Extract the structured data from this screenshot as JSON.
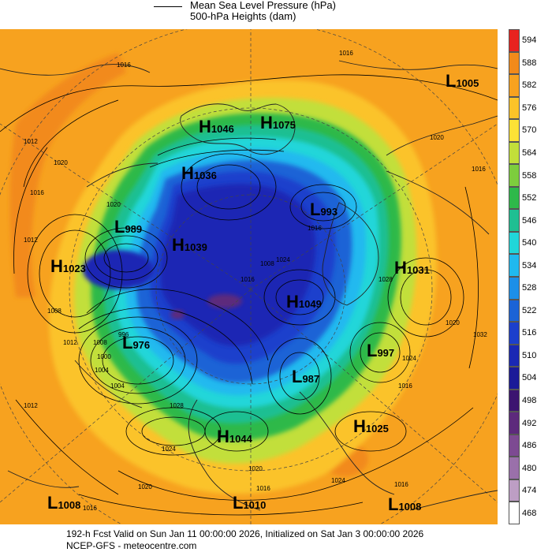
{
  "legend": {
    "line_label": "Mean Sea Level Pressure (hPa)",
    "fill_label": "500-hPa Heights (dam)"
  },
  "colorbar": {
    "levels": [
      "594",
      "588",
      "582",
      "576",
      "570",
      "564",
      "558",
      "552",
      "546",
      "540",
      "534",
      "528",
      "522",
      "516",
      "510",
      "504",
      "498",
      "492",
      "486",
      "480",
      "474",
      "468"
    ],
    "colors": [
      "#e8231f",
      "#f28a1a",
      "#f7a21f",
      "#fbc329",
      "#fde236",
      "#c2df3a",
      "#7dcd3d",
      "#2eb94a",
      "#1fbf92",
      "#21d6d9",
      "#20b9ef",
      "#1c8fe8",
      "#1b63d6",
      "#1c3fcc",
      "#1a28b4",
      "#1b1a98",
      "#3c1470",
      "#5d2a7c",
      "#7d4a92",
      "#9a70aa",
      "#bd9ec4",
      "#ffffff"
    ]
  },
  "map_colors": {
    "ocean_orange": "#f7a21f",
    "warm_orange": "#f28a1a",
    "yellow": "#fde236",
    "yellow_green": "#c2df3a",
    "green": "#2eb94a",
    "teal": "#1fbf92",
    "cyan": "#21d6d9",
    "light_blue": "#20b9ef",
    "blue": "#1b63d6",
    "dark_blue": "#1c3fcc",
    "navy": "#1a28b4",
    "purple": "#5d2a7c"
  },
  "pressure_centers": [
    {
      "type": "H",
      "value": "1046"
    },
    {
      "type": "H",
      "value": "1075"
    },
    {
      "type": "L",
      "value": "1005"
    },
    {
      "type": "H",
      "value": "1036"
    },
    {
      "type": "L",
      "value": "993"
    },
    {
      "type": "L",
      "value": "989"
    },
    {
      "type": "H",
      "value": "1039"
    },
    {
      "type": "H",
      "value": "1023"
    },
    {
      "type": "H",
      "value": "1031"
    },
    {
      "type": "H",
      "value": "1049"
    },
    {
      "type": "L",
      "value": "976"
    },
    {
      "type": "L",
      "value": "997"
    },
    {
      "type": "L",
      "value": "987"
    },
    {
      "type": "H",
      "value": "1025"
    },
    {
      "type": "H",
      "value": "1044"
    },
    {
      "type": "L",
      "value": "1008"
    },
    {
      "type": "L",
      "value": "1010"
    },
    {
      "type": "L",
      "value": "1008"
    }
  ],
  "isobar_labels": [
    "1016",
    "1016",
    "1012",
    "1020",
    "1016",
    "1020",
    "1016",
    "1020",
    "1016",
    "1012",
    "1008",
    "1016",
    "1024",
    "1028",
    "1024",
    "1020",
    "1016",
    "1012",
    "1020",
    "1016",
    "1024",
    "1032",
    "1028",
    "1016",
    "1012",
    "1008",
    "1004",
    "996",
    "1000",
    "1004",
    "1008",
    "1024",
    "1016",
    "1020"
  ],
  "footer": {
    "line1": "192-h Fcst Valid on Sun Jan 11 00:00:00 2026, Initialized on Sat Jan  3 00:00:00 2026",
    "line2": "NCEP-GFS  - meteocentre.com"
  }
}
